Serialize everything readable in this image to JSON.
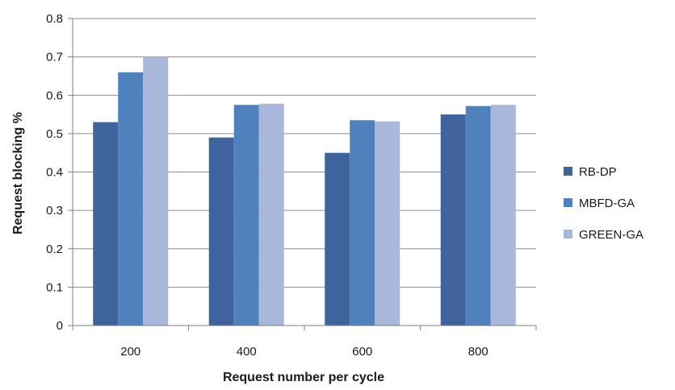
{
  "chart_data": {
    "type": "bar",
    "xlabel": "Request number per cycle",
    "ylabel": "Request blocking %",
    "categories": [
      "200",
      "400",
      "600",
      "800"
    ],
    "ylim": [
      0,
      0.8
    ],
    "yticks": [
      "0",
      "0.1",
      "0.2",
      "0.3",
      "0.4",
      "0.5",
      "0.6",
      "0.7",
      "0.8"
    ],
    "grid": true,
    "legend_position": "right",
    "series": [
      {
        "name": "RB-DP",
        "color": "#3f639c",
        "values": [
          0.53,
          0.49,
          0.45,
          0.55
        ]
      },
      {
        "name": "MBFD-GA",
        "color": "#4f81bd",
        "values": [
          0.66,
          0.575,
          0.535,
          0.572
        ]
      },
      {
        "name": "GREEN-GA",
        "color": "#a9b8da",
        "values": [
          0.7,
          0.578,
          0.532,
          0.575
        ]
      }
    ]
  }
}
